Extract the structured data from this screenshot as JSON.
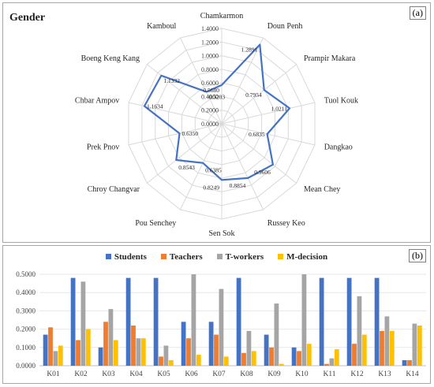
{
  "panel_a": {
    "tag": "(a)",
    "title": "Gender"
  },
  "panel_b": {
    "tag": "(b)"
  },
  "colors": {
    "line": "#4472c4",
    "students": "#4472c4",
    "teachers": "#ed7d31",
    "tworkers": "#a5a5a5",
    "mdecision": "#ffc000"
  },
  "chart_data": [
    {
      "type": "radar",
      "title": "Gender",
      "axis_ticks": [
        "0.0000",
        "0.2000",
        "0.4000",
        "0.6000",
        "0.8000",
        "1.0000",
        "1.2000",
        "1.4000"
      ],
      "rmax": 1.4,
      "categories": [
        "Chamkarmon",
        "Doun Penh",
        "Prampir Makara",
        "Tuol Kouk",
        "Dangkao",
        "Mean Chey",
        "Russey Keo",
        "Sen Sok",
        "Pou Senchey",
        "Chroy Changvar",
        "Prek Pnov",
        "Chbar Ampov",
        "Boeng Keng Kang",
        "Kamboul"
      ],
      "values": [
        0.568,
        1.2891,
        0.7954,
        1.0211,
        0.6835,
        0.9606,
        0.8854,
        0.8249,
        0.6385,
        0.8543,
        0.635,
        1.1634,
        1.1332,
        0.5203
      ],
      "value_labels": [
        "0.5680",
        "1.2891",
        "0.7954",
        "1.0211",
        "0.6835",
        "0.9606",
        "0.8854",
        "0.8249",
        "0.6385",
        "0.8543",
        "0.6350",
        "1.1634",
        "1.1332",
        "0.5203"
      ]
    },
    {
      "type": "bar",
      "categories": [
        "K01",
        "K02",
        "K03",
        "K04",
        "K05",
        "K06",
        "K07",
        "K08",
        "K09",
        "K10",
        "K11",
        "K12",
        "K13",
        "K14"
      ],
      "ylim": [
        0,
        0.5
      ],
      "yticks": [
        "0.0000",
        "0.1000",
        "0.2000",
        "0.3000",
        "0.4000",
        "0.5000"
      ],
      "legend_position": "top",
      "series": [
        {
          "name": "Students",
          "values": [
            0.17,
            0.48,
            0.1,
            0.48,
            0.48,
            0.24,
            0.24,
            0.48,
            0.17,
            0.1,
            0.48,
            0.48,
            0.48,
            0.03
          ]
        },
        {
          "name": "Teachers",
          "values": [
            0.21,
            0.14,
            0.24,
            0.22,
            0.05,
            0.15,
            0.17,
            0.07,
            0.1,
            0.08,
            0.01,
            0.12,
            0.19,
            0.03
          ]
        },
        {
          "name": "T-workers",
          "values": [
            0.08,
            0.46,
            0.31,
            0.15,
            0.11,
            0.5,
            0.42,
            0.19,
            0.34,
            0.5,
            0.04,
            0.38,
            0.27,
            0.23
          ]
        },
        {
          "name": "M-decision",
          "values": [
            0.11,
            0.2,
            0.14,
            0.15,
            0.03,
            0.06,
            0.05,
            0.08,
            0.01,
            0.12,
            0.09,
            0.17,
            0.19,
            0.22
          ]
        }
      ]
    }
  ]
}
